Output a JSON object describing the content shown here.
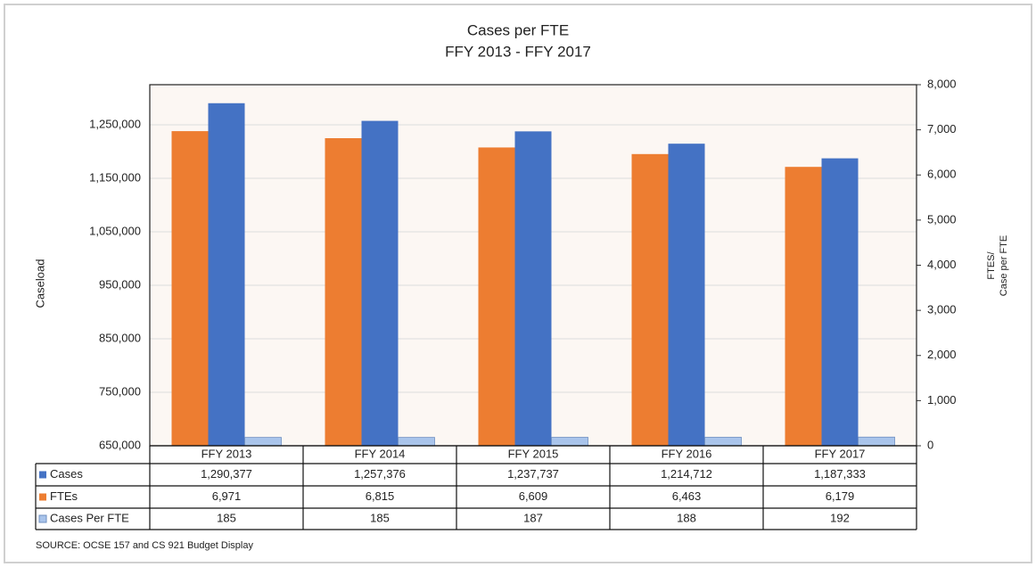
{
  "chart_data": {
    "type": "bar",
    "title": [
      "Cases per FTE",
      "FFY 2013 - FFY 2017"
    ],
    "ylabel": "Caseload",
    "y2label": [
      "FTES/",
      "Case per FTE"
    ],
    "categories": [
      "FFY 2013",
      "FFY 2014",
      "FFY 2015",
      "FFY 2016",
      "FFY 2017"
    ],
    "series": [
      {
        "name": "Cases",
        "color": "#4472c4",
        "values": [
          1290377,
          1257376,
          1237737,
          1214712,
          1187333
        ],
        "value_labels": [
          "1,290,377",
          "1,257,376",
          "1,237,737",
          "1,214,712",
          "1,187,333"
        ]
      },
      {
        "name": "FTEs",
        "color": "#ed7d31",
        "axis": "y2",
        "values": [
          6971,
          6815,
          6609,
          6463,
          6179
        ],
        "value_labels": [
          "6,971",
          "6,815",
          "6,609",
          "6,463",
          "6,179"
        ]
      },
      {
        "name": "Cases Per FTE",
        "color": "#a9c4eb",
        "axis": "y2",
        "values": [
          185,
          185,
          187,
          188,
          192
        ]
      }
    ],
    "bar_order": [
      1,
      0,
      2
    ],
    "ylim": [
      650000,
      1325000
    ],
    "yticks": [
      {
        "value": 650000,
        "label": "650,000"
      },
      {
        "value": 750000,
        "label": "750,000"
      },
      {
        "value": 850000,
        "label": "850,000"
      },
      {
        "value": 950000,
        "label": "950,000"
      },
      {
        "value": 1050000,
        "label": "1,050,000"
      },
      {
        "value": 1150000,
        "label": "1,150,000"
      },
      {
        "value": 1250000,
        "label": "1,250,000"
      }
    ],
    "y2lim": [
      0,
      8000
    ],
    "y2ticks": [
      0,
      {
        "value": 1000,
        "label": "1,000"
      },
      {
        "value": 2000,
        "label": "2,000"
      },
      {
        "value": 3000,
        "label": "3,000"
      },
      {
        "value": 4000,
        "label": "4,000"
      },
      {
        "value": 5000,
        "label": "5,000"
      },
      {
        "value": 6000,
        "label": "6,000"
      },
      {
        "value": 7000,
        "label": "7,000"
      },
      {
        "value": 8000,
        "label": "8,000"
      }
    ],
    "grid": true,
    "source": "SOURCE:  OCSE 157 and CS 921 Budget Display"
  }
}
